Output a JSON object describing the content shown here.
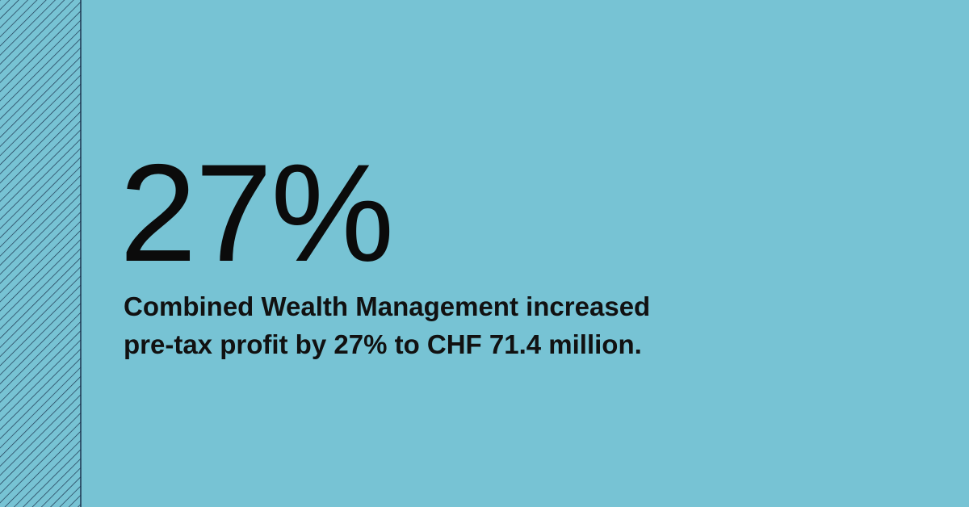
{
  "headline": "27%",
  "description": {
    "lines": [
      "Combined Wealth Management increased",
      "pre-tax profit by 27% to CHF 71.4 million."
    ]
  }
}
